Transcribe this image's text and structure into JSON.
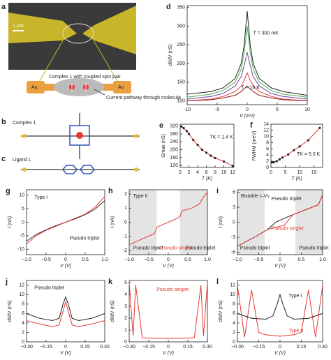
{
  "panel_a": {
    "label": "a",
    "scale_bar": "1 μm",
    "schematic_caption": "Complex 1 with coupled spin pair",
    "electrode_left": "Au",
    "electrode_right": "Au",
    "pathway": "Current pathway through molecule"
  },
  "panel_b": {
    "label": "b",
    "caption": "Complex 1"
  },
  "panel_c": {
    "label": "c",
    "caption": "Ligand L"
  },
  "plots": [
    {
      "label": "d",
      "xlabel": "V (mV)",
      "ylabel": "dI/dV (nS)",
      "xlim": [
        -10,
        10
      ],
      "ylim": [
        90,
        355
      ],
      "xticks": [
        -10,
        -5,
        0,
        5,
        10
      ],
      "yticks": [
        100,
        150,
        200,
        250,
        300,
        350
      ],
      "annotations": [
        "T = 300 mK",
        "T = 18 K"
      ],
      "series": [
        {
          "color": "#222222",
          "style": "line",
          "x": [
            -10,
            -6,
            -4,
            -2,
            -1,
            -0.5,
            0,
            0.5,
            1,
            2,
            4,
            6,
            10
          ],
          "values": [
            118,
            125,
            135,
            160,
            200,
            250,
            340,
            250,
            200,
            160,
            135,
            125,
            115
          ]
        },
        {
          "color": "#4caf50",
          "style": "line",
          "x": [
            -10,
            -6,
            -4,
            -2,
            -1,
            -0.5,
            0,
            0.5,
            1,
            2,
            4,
            6,
            10
          ],
          "values": [
            110,
            118,
            128,
            150,
            185,
            230,
            300,
            230,
            185,
            150,
            128,
            118,
            110
          ]
        },
        {
          "color": "#7b3fa0",
          "style": "line",
          "x": [
            -10,
            -6,
            -4,
            -2,
            -1,
            -0.5,
            0,
            0.5,
            1,
            2,
            4,
            6,
            10
          ],
          "values": [
            105,
            112,
            120,
            140,
            165,
            195,
            230,
            195,
            165,
            140,
            120,
            112,
            105
          ]
        },
        {
          "color": "#e53935",
          "style": "line",
          "x": [
            -10,
            -6,
            -4,
            -2,
            -1,
            -0.5,
            0,
            0.5,
            1,
            2,
            4,
            6,
            10
          ],
          "values": [
            100,
            105,
            112,
            125,
            140,
            155,
            175,
            155,
            140,
            125,
            112,
            105,
            100
          ]
        },
        {
          "color": "#8d1b1b",
          "style": "line",
          "x": [
            -10,
            -6,
            -4,
            -2,
            -1,
            -0.5,
            0,
            0.5,
            1,
            2,
            4,
            6,
            10
          ],
          "values": [
            100,
            103,
            108,
            115,
            125,
            132,
            140,
            132,
            125,
            115,
            108,
            103,
            100
          ]
        }
      ]
    },
    {
      "label": "e",
      "xlabel": "T (K)",
      "ylabel": "Gmax (nS)",
      "xlim": [
        0,
        12.3
      ],
      "ylim": [
        110,
        330
      ],
      "xticks": [
        0,
        2,
        4,
        6,
        8,
        10,
        12
      ],
      "yticks": [
        120,
        160,
        200,
        240,
        280,
        320
      ],
      "annotations": [
        "TK = 1.4 K"
      ],
      "series": [
        {
          "color": "#e53935",
          "style": "line",
          "x": [
            0.3,
            0.8,
            1.5,
            2,
            3,
            4,
            5,
            6,
            7,
            8,
            10,
            12
          ],
          "values": [
            318,
            310,
            295,
            280,
            250,
            225,
            200,
            185,
            170,
            158,
            140,
            118
          ]
        },
        {
          "color": "#222222",
          "style": "points",
          "x": [
            0.3,
            0.8,
            1.5,
            2,
            3,
            4,
            5,
            6,
            7,
            8,
            10,
            12
          ],
          "values": [
            318,
            310,
            295,
            280,
            250,
            225,
            200,
            185,
            170,
            158,
            140,
            118
          ]
        }
      ]
    },
    {
      "label": "f",
      "xlabel": "T (K)",
      "ylabel": "FWHM (meV)",
      "xlim": [
        0,
        18
      ],
      "ylim": [
        0,
        14
      ],
      "xticks": [
        0,
        5,
        10,
        15
      ],
      "yticks": [
        0,
        2,
        4,
        6,
        8,
        10,
        12,
        14
      ],
      "annotations": [
        "TK = 5.0 K"
      ],
      "series": [
        {
          "color": "#e53935",
          "style": "line",
          "x": [
            0.3,
            1,
            2,
            3,
            4,
            6,
            8,
            10,
            13,
            17
          ],
          "values": [
            1.6,
            1.7,
            2.0,
            2.6,
            3.2,
            4.2,
            5.6,
            6.8,
            8.8,
            12.8
          ]
        },
        {
          "color": "#222222",
          "style": "points",
          "x": [
            0.3,
            1,
            2,
            3,
            4,
            6,
            8,
            10,
            13,
            17
          ],
          "values": [
            1.6,
            1.7,
            2.0,
            2.6,
            3.2,
            4.2,
            5.6,
            6.8,
            8.8,
            12.8
          ]
        }
      ]
    },
    {
      "label": "g",
      "xlabel": "V (V)",
      "ylabel": "I (nA)",
      "xlim": [
        -1,
        1
      ],
      "ylim": [
        -12,
        12
      ],
      "xticks": [
        {
          "value": -1,
          "label": "−1.0"
        },
        {
          "value": -0.5,
          "label": "−0.5"
        },
        0,
        0.5,
        {
          "value": 1,
          "label": "1.0"
        }
      ],
      "yticks": [
        -10,
        -5,
        0,
        5,
        10
      ],
      "annotations": [
        "Type I",
        "Pseudo triplet"
      ],
      "series": [
        {
          "color": "#222222",
          "style": "line",
          "x": [
            -1,
            -0.75,
            -0.5,
            -0.25,
            0,
            0.25,
            0.5,
            0.75,
            1
          ],
          "values": [
            -7,
            -4.5,
            -2.8,
            -1.3,
            0,
            1.3,
            2.8,
            4.8,
            8
          ]
        },
        {
          "color": "#e53935",
          "style": "line",
          "x": [
            -1,
            -0.75,
            -0.5,
            -0.25,
            0,
            0.25,
            0.5,
            0.75,
            1
          ],
          "values": [
            -8,
            -5,
            -3,
            -1.5,
            0,
            1.5,
            3,
            5.5,
            9.5
          ]
        }
      ]
    },
    {
      "label": "h",
      "xlabel": "V (V)",
      "ylabel": "I (nA)",
      "xlim": [
        -1,
        1
      ],
      "ylim": [
        -2.3,
        2.3
      ],
      "xticks": [
        {
          "value": -1,
          "label": "−1.0"
        },
        {
          "value": -0.5,
          "label": "−0.5"
        },
        0,
        0.5,
        {
          "value": 1,
          "label": "1.0"
        }
      ],
      "yticks": [
        -2,
        -1,
        0,
        1,
        2
      ],
      "annotations": [
        "Type II",
        "Pseudo triplet",
        "Pseudo singlet",
        "Pseudo triplet"
      ],
      "series": [
        {
          "color": "#e53935",
          "style": "line",
          "x": [
            -1,
            -0.6,
            -0.35,
            -0.3,
            -0.25,
            0,
            0.25,
            0.3,
            0.35,
            0.6,
            0.8,
            0.9,
            1
          ],
          "values": [
            -1.6,
            -1.1,
            -0.8,
            -0.4,
            -0.3,
            0,
            0.3,
            0.4,
            0.8,
            1.0,
            1.3,
            1.8,
            2.1
          ]
        }
      ]
    },
    {
      "label": "i",
      "xlabel": "V (V)",
      "ylabel": "I (nA)",
      "xlim": [
        -1,
        1
      ],
      "ylim": [
        -6.5,
        6.5
      ],
      "xticks": [
        {
          "value": -1,
          "label": "−1.0"
        },
        {
          "value": -0.5,
          "label": "−0.5"
        },
        0,
        0.5,
        {
          "value": 1,
          "label": "1.0"
        }
      ],
      "yticks": [
        -6,
        -3,
        0,
        3,
        6
      ],
      "annotations": [
        "Bistable I–Vs",
        "Pseudo triplet",
        "Pseudo singlet",
        "Pseudo triplet",
        "Pseudo triplet"
      ],
      "series": [
        {
          "color": "#222222",
          "style": "line",
          "x": [
            -1,
            -0.6,
            -0.3,
            -0.1,
            0.1,
            0.3,
            0.6,
            0.9,
            1
          ],
          "values": [
            -4.8,
            -3,
            -1.5,
            0,
            0.8,
            1.5,
            2.5,
            3.5,
            5.5
          ]
        },
        {
          "color": "#e53935",
          "style": "line",
          "x": [
            -1,
            -0.6,
            -0.3,
            -0.1,
            0.1,
            0.3,
            0.6,
            0.9,
            1
          ],
          "values": [
            -4.8,
            -3,
            -1.5,
            -1,
            -0.6,
            1.5,
            2.5,
            3.5,
            5.5
          ]
        }
      ]
    },
    {
      "label": "j",
      "xlabel": "V (V)",
      "ylabel": "dI/dV (nS)",
      "xlim": [
        -0.3,
        0.3
      ],
      "ylim": [
        0,
        13
      ],
      "xticks": [
        {
          "value": -0.3,
          "label": "−0.30"
        },
        {
          "value": -0.15,
          "label": "−0.15"
        },
        0,
        {
          "value": 0.15,
          "label": "0.15"
        },
        {
          "value": 0.3,
          "label": "0.30"
        }
      ],
      "yticks": [
        0,
        2,
        4,
        6,
        8,
        10,
        12
      ],
      "annotations": [
        "Pseudo triplet"
      ],
      "series": [
        {
          "color": "#222222",
          "style": "line",
          "x": [
            -0.3,
            -0.2,
            -0.1,
            -0.05,
            -0.02,
            0,
            0.02,
            0.05,
            0.1,
            0.2,
            0.3
          ],
          "values": [
            6,
            5,
            4.5,
            5,
            8,
            9.5,
            8,
            5,
            4.5,
            5,
            6
          ]
        },
        {
          "color": "#e53935",
          "style": "line",
          "x": [
            -0.3,
            -0.2,
            -0.1,
            -0.05,
            -0.02,
            0,
            0.02,
            0.05,
            0.1,
            0.2,
            0.3
          ],
          "values": [
            4.5,
            3.8,
            3.2,
            3.6,
            6.5,
            8.5,
            6.5,
            3.6,
            3.2,
            3.8,
            4.5
          ]
        }
      ]
    },
    {
      "label": "k",
      "xlabel": "V (V)",
      "ylabel": "dI/dV (nS)",
      "xlim": [
        -0.3,
        0.3
      ],
      "ylim": [
        0,
        5.2
      ],
      "xticks": [
        {
          "value": -0.3,
          "label": "−0.30"
        },
        {
          "value": -0.15,
          "label": "−0.15"
        },
        0,
        {
          "value": 0.15,
          "label": "0.15"
        },
        {
          "value": 0.3,
          "label": "0.30"
        }
      ],
      "yticks": [
        0,
        1,
        2,
        3,
        4,
        5
      ],
      "annotations": [
        "Pseudo singlet"
      ],
      "series": [
        {
          "color": "#e53935",
          "style": "line",
          "x": [
            -0.3,
            -0.27,
            -0.25,
            -0.2,
            -0.1,
            0,
            0.1,
            0.2,
            0.25,
            0.27,
            0.3
          ],
          "values": [
            5,
            0.5,
            4.8,
            0.35,
            0.3,
            0.3,
            0.3,
            0.35,
            4.8,
            0.5,
            5
          ]
        }
      ]
    },
    {
      "label": "l",
      "xlabel": "V (V)",
      "ylabel": "dI/dV (nS)",
      "xlim": [
        -0.3,
        0.3
      ],
      "ylim": [
        0,
        13
      ],
      "xticks": [
        {
          "value": -0.3,
          "label": "−0.30"
        },
        {
          "value": -0.15,
          "label": "−0.15"
        },
        0,
        {
          "value": 0.15,
          "label": "0.15"
        },
        {
          "value": 0.3,
          "label": "0.30"
        }
      ],
      "yticks": [
        0,
        2,
        4,
        6,
        8,
        10,
        12
      ],
      "annotations": [
        "Type I",
        "Type II"
      ],
      "series": [
        {
          "color": "#e53935",
          "style": "line",
          "x": [
            -0.3,
            -0.25,
            -0.2,
            -0.15,
            -0.1,
            0,
            0.1,
            0.15,
            0.2,
            0.25,
            0.3
          ],
          "values": [
            12,
            1,
            11,
            2,
            1.5,
            1.2,
            1.5,
            2,
            11,
            1,
            12
          ]
        },
        {
          "color": "#222222",
          "style": "line",
          "x": [
            -0.3,
            -0.2,
            -0.1,
            -0.05,
            -0.02,
            0,
            0.02,
            0.05,
            0.1,
            0.2,
            0.3
          ],
          "values": [
            6,
            5,
            4.8,
            5.5,
            8,
            10,
            8,
            5.5,
            4.8,
            5,
            6
          ]
        }
      ]
    }
  ]
}
